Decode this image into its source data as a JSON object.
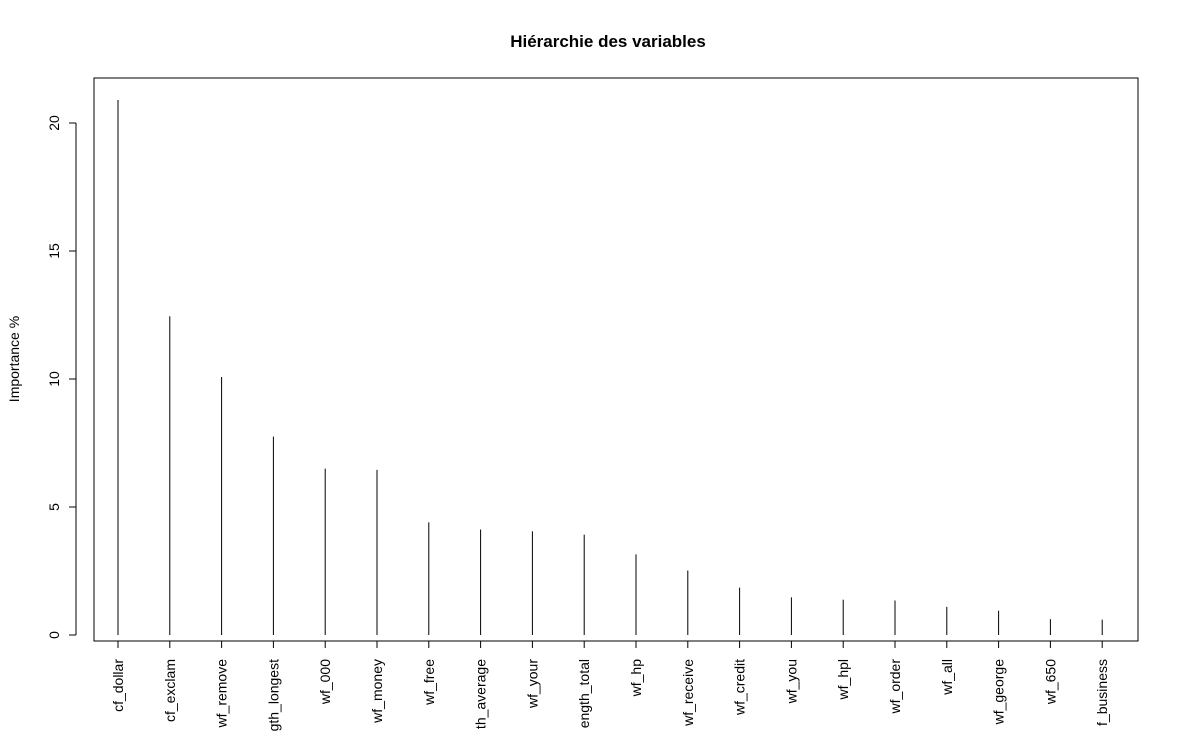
{
  "chart_data": {
    "type": "bar",
    "style": "histogram-lines",
    "title": "Hiérarchie des variables",
    "xlabel": "",
    "ylabel": "Importance %",
    "ylim": [
      0,
      21.5
    ],
    "yticks": [
      0,
      5,
      10,
      15,
      20
    ],
    "grid": false,
    "legend": "none",
    "categories": [
      "cf_dollar",
      "cf_exclam",
      "wf_remove",
      "crl_length_longest",
      "wf_000",
      "wf_money",
      "wf_free",
      "crl_length_average",
      "wf_your",
      "crl_length_total",
      "wf_hp",
      "wf_receive",
      "wf_credit",
      "wf_you",
      "wf_hpl",
      "wf_order",
      "wf_all",
      "wf_george",
      "wf_650",
      "wf_business"
    ],
    "tick_labels": [
      "cf_dollar",
      "cf_exclam",
      "wf_remove",
      "gth_longest",
      "wf_000",
      "wf_money",
      "wf_free",
      "th_average",
      "wf_your",
      "ength_total",
      "wf_hp",
      "wf_receive",
      "wf_credit",
      "wf_you",
      "wf_hpl",
      "wf_order",
      "wf_all",
      "wf_george",
      "wf_650",
      "f_business"
    ],
    "values": [
      20.9,
      12.45,
      10.08,
      7.75,
      6.5,
      6.45,
      4.4,
      4.12,
      4.05,
      3.92,
      3.15,
      2.52,
      1.85,
      1.47,
      1.38,
      1.35,
      1.1,
      0.95,
      0.62,
      0.6
    ],
    "colors": {
      "bar": "#000000",
      "axis": "#000000",
      "background": "#ffffff"
    }
  }
}
